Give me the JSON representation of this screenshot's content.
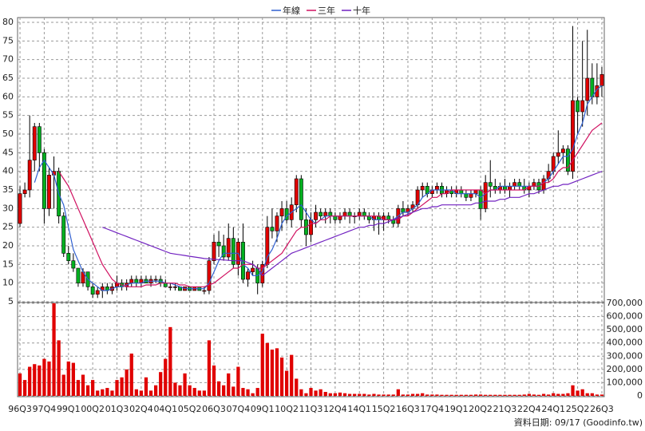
{
  "chart_data": {
    "type": "candlestick",
    "legend": {
      "position": "top"
    },
    "grid": true,
    "up_color": "#e00000",
    "down_color": "#00b020",
    "categories": [
      "96Q3",
      null,
      null,
      null,
      null,
      "97Q4",
      null,
      null,
      null,
      null,
      "99Q1",
      null,
      null,
      null,
      null,
      "00Q2",
      null,
      null,
      null,
      null,
      "01Q3",
      null,
      null,
      null,
      null,
      "02Q4",
      null,
      null,
      null,
      null,
      "04Q1",
      null,
      null,
      null,
      null,
      "05Q2",
      null,
      null,
      null,
      null,
      "06Q3",
      null,
      null,
      null,
      null,
      "07Q4",
      null,
      null,
      null,
      null,
      "09Q1",
      null,
      null,
      null,
      null,
      "10Q2",
      null,
      null,
      null,
      null,
      "11Q3",
      null,
      null,
      null,
      null,
      "12Q4",
      null,
      null,
      null,
      null,
      "14Q1",
      null,
      null,
      null,
      null,
      "15Q2",
      null,
      null,
      null,
      null,
      "16Q3",
      null,
      null,
      null,
      null,
      "17Q4",
      null,
      null,
      null,
      null,
      "19Q1",
      null,
      null,
      null,
      null,
      "20Q2",
      null,
      null,
      null,
      null,
      "21Q3",
      null,
      null,
      null,
      null,
      "22Q4",
      null,
      null,
      null,
      null,
      "24Q1",
      null,
      null,
      null,
      null,
      "25Q2",
      null,
      null,
      null,
      null,
      "26Q3"
    ],
    "ohlc": [
      [
        26,
        36,
        25,
        34
      ],
      [
        34,
        37,
        33,
        35
      ],
      [
        35,
        55,
        33,
        43
      ],
      [
        43,
        53,
        40,
        52
      ],
      [
        52,
        53,
        40,
        45
      ],
      [
        45,
        46,
        26,
        30
      ],
      [
        30,
        41,
        28,
        39
      ],
      [
        39,
        44,
        30,
        40
      ],
      [
        40,
        41,
        26,
        28
      ],
      [
        28,
        29,
        17,
        18
      ],
      [
        18,
        20,
        15,
        16
      ],
      [
        16,
        18,
        13,
        14
      ],
      [
        14,
        14,
        9,
        10
      ],
      [
        10,
        14,
        9,
        13
      ],
      [
        13,
        13,
        8,
        9
      ],
      [
        9,
        10,
        6,
        7
      ],
      [
        7,
        9,
        6,
        8
      ],
      [
        8,
        10,
        6,
        9
      ],
      [
        9,
        10,
        7,
        8
      ],
      [
        8,
        10,
        7,
        9
      ],
      [
        9,
        12,
        8,
        10
      ],
      [
        10,
        11,
        8,
        9
      ],
      [
        9,
        11,
        8,
        10
      ],
      [
        10,
        12,
        9,
        11
      ],
      [
        11,
        12,
        9,
        10
      ],
      [
        10,
        12,
        9,
        11
      ],
      [
        11,
        12,
        10,
        10
      ],
      [
        10,
        12,
        9,
        11
      ],
      [
        11,
        12,
        10,
        11
      ],
      [
        11,
        12,
        9,
        10
      ],
      [
        10,
        11,
        9,
        9
      ],
      [
        9,
        10,
        8,
        9
      ],
      [
        9,
        10,
        8,
        9
      ],
      [
        9,
        9,
        8,
        8
      ],
      [
        8,
        9,
        8,
        9
      ],
      [
        9,
        9,
        8,
        8
      ],
      [
        8,
        9,
        8,
        9
      ],
      [
        9,
        9,
        8,
        8
      ],
      [
        8,
        9,
        7,
        8
      ],
      [
        8,
        17,
        7,
        16
      ],
      [
        16,
        23,
        15,
        21
      ],
      [
        21,
        24,
        17,
        20
      ],
      [
        20,
        23,
        16,
        17
      ],
      [
        17,
        26,
        16,
        22
      ],
      [
        22,
        25,
        14,
        15
      ],
      [
        15,
        22,
        12,
        21
      ],
      [
        21,
        26,
        10,
        11
      ],
      [
        11,
        14,
        9,
        13
      ],
      [
        13,
        16,
        12,
        14
      ],
      [
        14,
        15,
        7,
        10
      ],
      [
        10,
        16,
        9,
        15
      ],
      [
        15,
        28,
        14,
        25
      ],
      [
        25,
        30,
        22,
        24
      ],
      [
        24,
        29,
        21,
        28
      ],
      [
        28,
        32,
        24,
        30
      ],
      [
        30,
        32,
        26,
        27
      ],
      [
        27,
        33,
        25,
        31
      ],
      [
        31,
        39,
        29,
        38
      ],
      [
        38,
        39,
        25,
        27
      ],
      [
        27,
        30,
        20,
        23
      ],
      [
        23,
        29,
        21,
        27
      ],
      [
        27,
        31,
        25,
        29
      ],
      [
        29,
        30,
        27,
        28
      ],
      [
        28,
        30,
        26,
        29
      ],
      [
        29,
        30,
        26,
        28
      ],
      [
        28,
        29,
        26,
        27
      ],
      [
        27,
        29,
        26,
        28
      ],
      [
        28,
        30,
        27,
        29
      ],
      [
        29,
        30,
        26,
        28
      ],
      [
        28,
        29,
        26,
        28
      ],
      [
        28,
        30,
        27,
        29
      ],
      [
        29,
        30,
        27,
        28
      ],
      [
        28,
        29,
        26,
        27
      ],
      [
        27,
        29,
        24,
        28
      ],
      [
        28,
        29,
        23,
        27
      ],
      [
        27,
        29,
        24,
        28
      ],
      [
        28,
        29,
        26,
        27
      ],
      [
        27,
        28,
        25,
        26
      ],
      [
        26,
        31,
        25,
        30
      ],
      [
        30,
        32,
        28,
        29
      ],
      [
        29,
        31,
        28,
        30
      ],
      [
        30,
        32,
        29,
        31
      ],
      [
        31,
        36,
        30,
        35
      ],
      [
        35,
        37,
        33,
        36
      ],
      [
        36,
        37,
        33,
        34
      ],
      [
        34,
        36,
        33,
        35
      ],
      [
        35,
        37,
        34,
        36
      ],
      [
        36,
        37,
        33,
        34
      ],
      [
        34,
        36,
        33,
        35
      ],
      [
        35,
        36,
        33,
        34
      ],
      [
        34,
        36,
        33,
        35
      ],
      [
        35,
        36,
        33,
        34
      ],
      [
        34,
        35,
        32,
        33
      ],
      [
        33,
        35,
        32,
        34
      ],
      [
        34,
        35,
        33,
        35
      ],
      [
        35,
        36,
        27,
        30
      ],
      [
        30,
        39,
        29,
        37
      ],
      [
        37,
        43,
        33,
        36
      ],
      [
        36,
        38,
        34,
        35
      ],
      [
        35,
        37,
        34,
        36
      ],
      [
        36,
        38,
        34,
        35
      ],
      [
        35,
        37,
        33,
        36
      ],
      [
        36,
        38,
        35,
        37
      ],
      [
        37,
        38,
        35,
        36
      ],
      [
        36,
        38,
        34,
        35
      ],
      [
        35,
        37,
        33,
        36
      ],
      [
        36,
        38,
        35,
        37
      ],
      [
        37,
        38,
        34,
        35
      ],
      [
        35,
        39,
        34,
        38
      ],
      [
        38,
        42,
        37,
        40
      ],
      [
        40,
        45,
        39,
        44
      ],
      [
        44,
        51,
        42,
        45
      ],
      [
        45,
        47,
        42,
        46
      ],
      [
        46,
        47,
        39,
        40
      ],
      [
        40,
        79,
        38,
        59
      ],
      [
        59,
        60,
        50,
        56
      ],
      [
        56,
        75,
        52,
        59
      ],
      [
        59,
        78,
        55,
        65
      ],
      [
        65,
        69,
        58,
        60
      ],
      [
        60,
        69,
        58,
        63
      ],
      [
        63,
        68,
        60,
        66
      ]
    ],
    "series": [
      {
        "name": "年線",
        "color": "#3060d0",
        "values": [
          null,
          null,
          null,
          37,
          41,
          43,
          41,
          39,
          34,
          31,
          25,
          19,
          16,
          13,
          11,
          10,
          9,
          8,
          8,
          8.5,
          9,
          9,
          9.5,
          10,
          10,
          10,
          10.5,
          10.5,
          10.5,
          10.5,
          10,
          10,
          9.5,
          9,
          8.5,
          8.5,
          8.5,
          8.5,
          8.5,
          10,
          13,
          16,
          18,
          18,
          18,
          18,
          15,
          14,
          12,
          12,
          13,
          17,
          19,
          22,
          26,
          28,
          29,
          30,
          31,
          29,
          27,
          26,
          27,
          28,
          28,
          28,
          28,
          28,
          28,
          28,
          28,
          28,
          28,
          27,
          27,
          27,
          27,
          27,
          28,
          29,
          29,
          30,
          31,
          33,
          34,
          35,
          35,
          35,
          35,
          35,
          34,
          34,
          34,
          34,
          34,
          33,
          34,
          35,
          35,
          36,
          36,
          36,
          36,
          36,
          36,
          36,
          36,
          36,
          37,
          38,
          40,
          42,
          44,
          44,
          46,
          50,
          53,
          58,
          60,
          62,
          63
        ]
      },
      {
        "name": "三年",
        "color": "#d01060",
        "values": [
          null,
          null,
          null,
          null,
          null,
          null,
          null,
          null,
          40,
          38,
          36,
          33,
          30,
          27,
          24,
          21,
          18,
          15,
          13,
          11,
          10,
          9.5,
          9,
          9,
          9,
          9,
          9.5,
          9.5,
          9.5,
          10,
          10,
          10,
          10,
          9.5,
          9.5,
          9,
          9,
          9,
          9,
          9.5,
          10,
          11,
          12,
          13,
          14,
          14,
          15,
          15,
          15,
          14,
          14,
          15,
          16,
          17,
          18,
          20,
          22,
          24,
          25,
          25,
          26,
          26,
          27,
          27,
          28,
          28,
          28,
          28,
          28,
          28,
          28,
          28,
          28,
          28,
          28,
          27,
          27,
          27,
          27,
          28,
          28,
          29,
          30,
          31,
          32,
          33,
          33,
          34,
          34,
          35,
          35,
          35,
          35,
          35,
          35,
          35,
          34,
          35,
          35,
          35,
          35,
          35,
          35,
          35,
          35,
          36,
          36,
          36,
          37,
          37,
          38,
          40,
          41,
          41,
          43,
          45,
          47,
          49,
          51,
          52,
          53
        ]
      },
      {
        "name": "十年",
        "color": "#7020c0",
        "values": [
          null,
          null,
          null,
          null,
          null,
          null,
          null,
          null,
          null,
          null,
          null,
          null,
          null,
          null,
          null,
          null,
          null,
          25,
          24.5,
          24,
          23.5,
          23,
          22.5,
          22,
          21.5,
          21,
          20.5,
          20,
          19.5,
          19,
          18.5,
          18,
          17.8,
          17.6,
          17.4,
          17.2,
          17,
          16.8,
          16.6,
          16.5,
          16.4,
          16.3,
          16.2,
          16.1,
          16,
          16,
          16,
          15.5,
          15,
          14,
          12,
          13,
          14,
          15,
          16,
          17,
          18,
          18.5,
          19,
          19.5,
          20,
          20.5,
          21,
          21.5,
          22,
          22.5,
          23,
          23.5,
          24,
          24.5,
          25,
          25,
          25.5,
          25.5,
          26,
          26,
          26.5,
          27,
          27.5,
          28,
          28.5,
          29,
          29.5,
          30,
          30,
          30.5,
          30.5,
          31,
          31,
          31,
          31,
          31,
          31,
          31,
          31.5,
          31.5,
          32,
          32,
          32,
          32.5,
          32.5,
          33,
          33,
          33,
          33.5,
          34,
          34,
          34.5,
          35,
          35.5,
          36,
          36,
          36.5,
          36.5,
          37,
          37.5,
          38,
          38.5,
          39,
          39.5,
          40
        ]
      }
    ],
    "ylim": [
      5,
      80
    ],
    "yticks": [
      5,
      10,
      15,
      20,
      25,
      30,
      35,
      40,
      45,
      50,
      55,
      60,
      65,
      70,
      75,
      80
    ],
    "volume": {
      "color": "#e00000",
      "values": [
        170000,
        120000,
        220000,
        240000,
        230000,
        280000,
        260000,
        700000,
        420000,
        160000,
        260000,
        250000,
        120000,
        160000,
        80000,
        120000,
        40000,
        50000,
        60000,
        40000,
        120000,
        140000,
        200000,
        320000,
        50000,
        40000,
        140000,
        40000,
        80000,
        180000,
        280000,
        520000,
        100000,
        80000,
        170000,
        80000,
        60000,
        40000,
        40000,
        420000,
        230000,
        110000,
        80000,
        170000,
        70000,
        220000,
        60000,
        50000,
        20000,
        60000,
        470000,
        400000,
        350000,
        360000,
        290000,
        190000,
        310000,
        130000,
        50000,
        20000,
        60000,
        40000,
        50000,
        30000,
        20000,
        20000,
        25000,
        20000,
        15000,
        15000,
        15000,
        15000,
        10000,
        15000,
        10000,
        10000,
        10000,
        10000,
        50000,
        10000,
        10000,
        15000,
        15000,
        20000,
        10000,
        10000,
        10000,
        8000,
        8000,
        8000,
        8000,
        8000,
        8000,
        8000,
        10000,
        10000,
        8000,
        8000,
        8000,
        8000,
        8000,
        8000,
        8000,
        8000,
        10000,
        15000,
        10000,
        8000,
        15000,
        10000,
        20000,
        15000,
        15000,
        20000,
        80000,
        40000,
        50000,
        20000,
        20000,
        10000,
        10000
      ],
      "ylim": [
        0,
        700000
      ],
      "yticks": [
        0,
        {
          "value": 100000,
          "label": "100,000"
        },
        {
          "value": 200000,
          "label": "200,000"
        },
        {
          "value": 300000,
          "label": "300,000"
        },
        {
          "value": 400000,
          "label": "400,000"
        },
        {
          "value": 500000,
          "label": "500,000"
        },
        {
          "value": 600000,
          "label": "600,000"
        },
        {
          "value": 700000,
          "label": "700,000"
        }
      ]
    },
    "footnote": "資料日期: 09/17 (Goodinfo.tw)"
  }
}
